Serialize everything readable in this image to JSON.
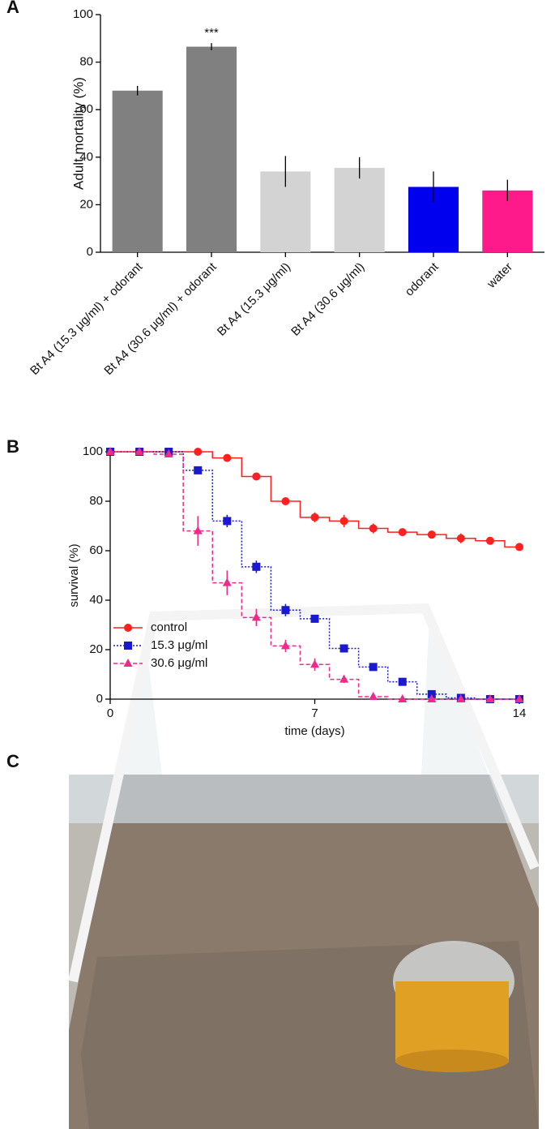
{
  "chart_data": [
    {
      "type": "bar",
      "panel_label": "A",
      "ylabel": "Adult mortality (%)",
      "categories": [
        "Bt A4 (15.3 μg/ml) + odorant",
        "Bt A4 (30.6 μg/ml) + odorant",
        "Bt A4 (15.3 μg/ml)",
        "Bt A4 (30.6 μg/ml)",
        "odorant",
        "water"
      ],
      "values": [
        68,
        86.5,
        34,
        35.5,
        27.5,
        26
      ],
      "errors": [
        2,
        1.5,
        6.5,
        4.5,
        6.5,
        4.5
      ],
      "colors": [
        "#808080",
        "#808080",
        "#d3d3d3",
        "#d3d3d3",
        "#0000ee",
        "#ff1a8c"
      ],
      "annotations": [
        {
          "category": 1,
          "text": "***"
        }
      ],
      "ylim": [
        0,
        100
      ],
      "yticks": [
        0,
        20,
        40,
        60,
        80,
        100
      ]
    },
    {
      "type": "line",
      "panel_label": "B",
      "xlabel": "time (days)",
      "ylabel": "survival (%)",
      "x": [
        0,
        1,
        2,
        3,
        4,
        5,
        6,
        7,
        8,
        9,
        10,
        11,
        12,
        13,
        14
      ],
      "series": [
        {
          "name": "control",
          "color": "#ff2020",
          "marker": "circle",
          "dash": "none",
          "values": [
            100,
            100,
            100,
            100,
            97.5,
            90,
            80,
            73.5,
            72,
            69,
            67.5,
            66.5,
            65,
            64,
            61.5
          ],
          "errors": [
            0,
            0,
            0,
            0,
            1,
            1,
            1,
            2,
            2.5,
            2,
            1,
            1,
            2,
            1,
            1
          ]
        },
        {
          "name": "15.3 μg/ml",
          "color": "#1a1acc",
          "marker": "square",
          "dash": "2,2",
          "values": [
            100,
            100,
            100,
            92.5,
            72,
            53.5,
            36,
            32.5,
            20.5,
            13,
            7,
            2,
            0.5,
            0,
            0
          ],
          "errors": [
            0,
            0,
            0,
            1.5,
            2.5,
            2.5,
            2.5,
            1,
            1,
            1,
            1,
            0.5,
            0.5,
            0,
            0
          ]
        },
        {
          "name": "30.6 μg/ml",
          "color": "#ee2a8a",
          "marker": "triangle",
          "dash": "5,3",
          "values": [
            100,
            100,
            99,
            68,
            47,
            33,
            21.5,
            14,
            8,
            1,
            0,
            0,
            0,
            0,
            0
          ],
          "errors": [
            0,
            0,
            1,
            6,
            5,
            3.5,
            2.5,
            2.5,
            1.5,
            0.5,
            0,
            0,
            0,
            0,
            0
          ]
        }
      ],
      "xlim": [
        0,
        14
      ],
      "xticks": [
        0,
        7,
        14
      ],
      "ylim": [
        0,
        100
      ],
      "yticks": [
        0,
        20,
        40,
        60,
        80,
        100
      ],
      "legend": "lower left"
    }
  ],
  "photo": {
    "label": "C"
  }
}
